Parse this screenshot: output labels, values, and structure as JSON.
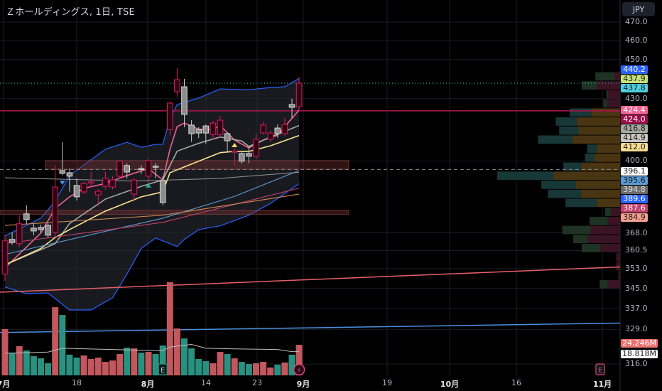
{
  "header": {
    "title": "Ｚホールディングス, 1日, TSE",
    "currency_button": "JPY"
  },
  "colors": {
    "background": "#000000",
    "up_candle": "#d81b60",
    "down_candle": "#9e9e9e",
    "volume_up": "#c2575d",
    "volume_down": "#2a9180",
    "bollinger": "#2962ff",
    "grid": "#1a1d26"
  },
  "chart_data": {
    "type": "candlestick",
    "price_scale": "log",
    "ylim": [
      316,
      470
    ],
    "price_ticks": [
      "470.0",
      "460.0",
      "450.0",
      "430.0",
      "400.0",
      "368.0",
      "360.5",
      "353.0",
      "345.0",
      "337.0",
      "329.0",
      "316.0"
    ],
    "time_ticks": [
      {
        "label": "7月",
        "month": true
      },
      {
        "label": "18",
        "month": false
      },
      {
        "label": "8月",
        "month": true
      },
      {
        "label": "14",
        "month": false
      },
      {
        "label": "23",
        "month": false
      },
      {
        "label": "9月",
        "month": true
      },
      {
        "label": "19",
        "month": false
      },
      {
        "label": "10月",
        "month": true
      },
      {
        "label": "16",
        "month": false
      },
      {
        "label": "11月",
        "month": true
      }
    ],
    "ohlc": [
      [
        350.8,
        367.3,
        348.0,
        364.6
      ],
      [
        365.2,
        368.2,
        363.0,
        364.0
      ],
      [
        363.4,
        375.6,
        362.0,
        371.9
      ],
      [
        376.2,
        380.0,
        371.9,
        373.7
      ],
      [
        370.0,
        372.0,
        367.0,
        368.8
      ],
      [
        370.3,
        371.5,
        368.0,
        369.4
      ],
      [
        371.2,
        372.0,
        366.0,
        367.0
      ],
      [
        368.2,
        398.0,
        366.0,
        388.1
      ],
      [
        395.6,
        408.8,
        393.5,
        394.3
      ],
      [
        394.6,
        396.5,
        386.0,
        393.0
      ],
      [
        388.8,
        392.0,
        382.0,
        383.7
      ],
      [
        385.9,
        390.4,
        385.0,
        389.7
      ],
      [
        389.9,
        395.0,
        388.0,
        390.4
      ],
      [
        384.6,
        387.0,
        379.6,
        386.2
      ],
      [
        388.4,
        395.0,
        387.0,
        392.0
      ],
      [
        388.1,
        393.0,
        387.0,
        391.3
      ],
      [
        393.0,
        400.2,
        392.0,
        399.9
      ],
      [
        397.9,
        398.9,
        392.0,
        394.9
      ],
      [
        384.9,
        392.0,
        381.5,
        391.3
      ],
      [
        396.5,
        398.0,
        394.0,
        396.2
      ],
      [
        393.0,
        401.0,
        390.0,
        400.2
      ],
      [
        397.6,
        399.0,
        392.0,
        397.2
      ],
      [
        391.0,
        393.0,
        380.0,
        381.2
      ],
      [
        414.9,
        428.5,
        412.0,
        427.8
      ],
      [
        433.5,
        445.5,
        431.0,
        439.6
      ],
      [
        436.0,
        440.0,
        416.0,
        422.2
      ],
      [
        417.0,
        419.4,
        409.0,
        412.9
      ],
      [
        414.9,
        416.0,
        410.8,
        413.2
      ],
      [
        416.6,
        417.3,
        408.0,
        413.2
      ],
      [
        412.5,
        419.0,
        410.0,
        418.0
      ],
      [
        412.5,
        421.5,
        411.0,
        419.4
      ],
      [
        412.9,
        413.5,
        404.5,
        409.5
      ],
      [
        404.3,
        406.0,
        398.0,
        404.6
      ],
      [
        403.5,
        404.0,
        398.8,
        399.9
      ],
      [
        403.5,
        407.0,
        399.0,
        402.2
      ],
      [
        402.2,
        413.0,
        401.0,
        410.2
      ],
      [
        413.2,
        418.5,
        412.5,
        417.0
      ],
      [
        410.2,
        414.5,
        409.0,
        413.2
      ],
      [
        415.6,
        417.3,
        411.0,
        412.9
      ],
      [
        412.9,
        420.5,
        412.0,
        417.3
      ],
      [
        427.1,
        430.0,
        420.5,
        425.7
      ],
      [
        426.0,
        441.0,
        424.0,
        437.8
      ]
    ],
    "volume_millions": [
      36.7,
      18.0,
      23.1,
      19.7,
      15.2,
      13.5,
      9.6,
      54.1,
      47.9,
      16.4,
      14.1,
      15.8,
      13.0,
      14.1,
      10.7,
      11.8,
      16.9,
      22.0,
      21.4,
      18.0,
      18.6,
      16.9,
      23.7,
      73.9,
      37.2,
      29.3,
      21.4,
      13.0,
      11.3,
      9.6,
      18.6,
      16.9,
      13.5,
      10.7,
      9.0,
      9.6,
      10.7,
      6.2,
      8.5,
      10.2,
      16.4,
      24.246
    ],
    "volume_colors": [
      "up",
      "down",
      "up",
      "down",
      "down",
      "down",
      "down",
      "up",
      "down",
      "down",
      "down",
      "up",
      "up",
      "up",
      "up",
      "up",
      "up",
      "down",
      "up",
      "down",
      "up",
      "down",
      "down",
      "up",
      "up",
      "down",
      "down",
      "down",
      "down",
      "up",
      "up",
      "down",
      "up",
      "down",
      "down",
      "up",
      "up",
      "up",
      "down",
      "up",
      "down",
      "up"
    ],
    "volume_ma": [
      [
        0,
        17.5
      ],
      [
        6,
        18.5
      ],
      [
        8,
        21.5
      ],
      [
        22,
        19.5
      ],
      [
        23,
        22.5
      ],
      [
        26,
        24.5
      ],
      [
        28,
        21.5
      ],
      [
        32,
        21.0
      ],
      [
        38,
        20.5
      ],
      [
        40,
        18.8
      ],
      [
        41,
        18.818
      ]
    ],
    "lines": [
      {
        "color": "#f06292",
        "points": [
          [
            0,
            353.3
          ],
          [
            5,
            367.9
          ],
          [
            7,
            378.6
          ],
          [
            9,
            383.7
          ],
          [
            11,
            387.5
          ],
          [
            14,
            389.7
          ],
          [
            17,
            393.3
          ],
          [
            20,
            396.5
          ],
          [
            22,
            391.3
          ],
          [
            23,
            405.5
          ],
          [
            24,
            416.3
          ],
          [
            25,
            418
          ],
          [
            27,
            415
          ],
          [
            29,
            415
          ],
          [
            30,
            416.8
          ],
          [
            32,
            409.8
          ],
          [
            34,
            406.1
          ],
          [
            36,
            409.8
          ],
          [
            38,
            412.2
          ],
          [
            41,
            424.4
          ]
        ]
      },
      {
        "color": "#a5aaa0",
        "points": [
          [
            0,
            354.6
          ],
          [
            7,
            363.4
          ],
          [
            9,
            372
          ],
          [
            14,
            382.7
          ],
          [
            19,
            388.4
          ],
          [
            22,
            391.3
          ],
          [
            24,
            404.6
          ],
          [
            27,
            408.3
          ],
          [
            30,
            411.3
          ],
          [
            33,
            409.4
          ],
          [
            34,
            406.8
          ],
          [
            37,
            411.3
          ],
          [
            41,
            416.8
          ]
        ]
      },
      {
        "color": "#f7e38f",
        "points": [
          [
            0,
            354.6
          ],
          [
            5,
            361.4
          ],
          [
            7,
            366
          ],
          [
            9,
            369.4
          ],
          [
            14,
            377.4
          ],
          [
            19,
            383.7
          ],
          [
            22,
            385.9
          ],
          [
            23,
            394.6
          ],
          [
            27,
            399.9
          ],
          [
            30,
            403.9
          ],
          [
            32,
            404.5
          ],
          [
            34,
            404.5
          ],
          [
            37,
            407.1
          ],
          [
            41,
            412.0
          ]
        ]
      },
      {
        "color": "#5b9bd5",
        "points": [
          [
            0,
            358.9
          ],
          [
            22,
            374.3
          ],
          [
            32,
            383.9
          ],
          [
            41,
            395.6
          ]
        ]
      },
      {
        "color": "#8a8a8a",
        "points": [
          [
            0,
            392.3
          ],
          [
            18,
            390.8
          ],
          [
            30,
            392
          ],
          [
            41,
            394.8
          ]
        ]
      },
      {
        "color": "#c2406c",
        "points": [
          [
            0,
            363.4
          ],
          [
            22,
            372.5
          ],
          [
            41,
            387.6
          ]
        ]
      },
      {
        "color": "#d08a50",
        "points": [
          [
            0,
            371.2
          ],
          [
            22,
            375.6
          ],
          [
            41,
            384.9
          ]
        ]
      }
    ],
    "bollinger_upper": [
      [
        0,
        366.7
      ],
      [
        5,
        374.3
      ],
      [
        7,
        381.8
      ],
      [
        9,
        393.3
      ],
      [
        14,
        405.5
      ],
      [
        17,
        408.8
      ],
      [
        19,
        406.4
      ],
      [
        21,
        407.8
      ],
      [
        22,
        407.8
      ],
      [
        23,
        420.1
      ],
      [
        24,
        427.1
      ],
      [
        27,
        430.3
      ],
      [
        30,
        434.9
      ],
      [
        34,
        434.5
      ],
      [
        37,
        435.6
      ],
      [
        39,
        436
      ],
      [
        41,
        440.2
      ]
    ],
    "bollinger_lower": [
      [
        0,
        345.6
      ],
      [
        3,
        342.9
      ],
      [
        6,
        343.2
      ],
      [
        9,
        336.5
      ],
      [
        12,
        336.5
      ],
      [
        15,
        341.3
      ],
      [
        17,
        350.8
      ],
      [
        19,
        361.4
      ],
      [
        21,
        365.8
      ],
      [
        24,
        362.2
      ],
      [
        25,
        365.2
      ],
      [
        27,
        369.4
      ],
      [
        30,
        371
      ],
      [
        34,
        375.6
      ],
      [
        37,
        380.8
      ],
      [
        41,
        389.6
      ]
    ],
    "horizontal_levels": [
      {
        "price": 424.0,
        "color": "#b0124f",
        "style": "solid"
      },
      {
        "price": 437.8,
        "color": "#4dd0e1",
        "style": "dotted"
      },
      {
        "price": 396.1,
        "color": "#8a8a8a",
        "style": "dashed"
      }
    ],
    "zones": [
      {
        "top": 400.2,
        "bottom": 396.2,
        "start_index": 6
      },
      {
        "top": 377.8,
        "bottom": 376.0,
        "start_index": -1
      }
    ],
    "trend_lines": [
      {
        "color": "#e8606a",
        "left_price": 343.5,
        "right_price": 353.7
      },
      {
        "color": "#4a90e2",
        "left_price": 327.8,
        "right_price": 331.4
      }
    ],
    "markers": [
      {
        "type": "triangle-down",
        "index": 8,
        "price": 390.0,
        "color": "#4a90e2"
      },
      {
        "type": "triangle-up",
        "index": 20,
        "price": 388.8,
        "color": "#26a69a"
      },
      {
        "type": "triangle-up",
        "index": 32,
        "price": 407.5,
        "color": "#f7d774"
      }
    ],
    "volume_profile": {
      "price_top": 443.6,
      "price_bottom": 344.9,
      "rows": [
        {
          "up": 81,
          "down": 23,
          "value_area": false
        },
        {
          "up": 64,
          "down": 98,
          "value_area": false
        },
        {
          "up": 7,
          "down": 51,
          "value_area": false
        },
        {
          "up": 16,
          "down": 55,
          "value_area": false
        },
        {
          "up": 92,
          "down": 121,
          "value_area": true
        },
        {
          "up": 88,
          "down": 183,
          "value_area": true
        },
        {
          "up": 82,
          "down": 175,
          "value_area": true
        },
        {
          "up": 145,
          "down": 201,
          "value_area": true
        },
        {
          "up": 40,
          "down": 99,
          "value_area": true
        },
        {
          "up": 39,
          "down": 109,
          "value_area": true
        },
        {
          "up": 75,
          "down": 164,
          "value_area": true
        },
        {
          "up": 237,
          "down": 281,
          "value_area": true
        },
        {
          "up": 145,
          "down": 187,
          "value_area": true
        },
        {
          "up": 140,
          "down": 165,
          "value_area": true
        },
        {
          "up": 131,
          "down": 99,
          "value_area": true
        },
        {
          "up": 25,
          "down": 38,
          "value_area": false
        },
        {
          "up": 77,
          "down": 52,
          "value_area": false
        },
        {
          "up": 120,
          "down": 124,
          "value_area": false
        },
        {
          "up": 62,
          "down": 136,
          "value_area": false
        },
        {
          "up": 78,
          "down": 84,
          "value_area": false
        },
        {
          "up": 0,
          "down": 16,
          "value_area": false
        },
        {
          "up": 0,
          "down": 16,
          "value_area": false
        },
        {
          "up": 0,
          "down": 8,
          "value_area": false
        },
        {
          "up": 33,
          "down": 53,
          "value_area": false
        }
      ]
    },
    "price_badges": [
      {
        "value": "440.2",
        "bg": "#2962ff",
        "fg": "#ffffff"
      },
      {
        "value": "437.9",
        "bg": "#c5e17a",
        "fg": "#1a1a1a"
      },
      {
        "value": "437.8",
        "bg": "#4dd0e1",
        "fg": "#1a1a1a"
      },
      {
        "value": "424.4",
        "bg": "#f06292",
        "fg": "#ffffff"
      },
      {
        "value": "424.0",
        "bg": "#9c0f4a",
        "fg": "#ffffff"
      },
      {
        "value": "416.8",
        "bg": "#a5aaa0",
        "fg": "#1a1a1a"
      },
      {
        "value": "414.9",
        "bg": "#c8c6c0",
        "fg": "#1a1a1a"
      },
      {
        "value": "412.0",
        "bg": "#f7dc8f",
        "fg": "#1a1a1a"
      },
      {
        "value": "396.1",
        "bg": "#ffffff",
        "fg": "#1a1a1a"
      },
      {
        "value": "395.6",
        "bg": "#5b9bd5",
        "fg": "#1a1a1a"
      },
      {
        "value": "394.8",
        "bg": "#6b6b6b",
        "fg": "#e0e0e0"
      },
      {
        "value": "389.6",
        "bg": "#2962ff",
        "fg": "#ffffff"
      },
      {
        "value": "387.6",
        "bg": "#c2406c",
        "fg": "#ffffff"
      },
      {
        "value": "384.9",
        "bg": "#f4a190",
        "fg": "#1a1a1a"
      }
    ],
    "volume_badges": [
      {
        "value": "24.246M",
        "bg": "#f07070",
        "fg": "#ffffff"
      },
      {
        "value": "18.818M",
        "bg": "#ffffff",
        "fg": "#1a1a1a"
      }
    ],
    "events": [
      {
        "type": "earnings",
        "label": "E",
        "index": 22,
        "color": "#2a9180"
      },
      {
        "type": "dividend-flash",
        "label": "⚡",
        "index": 41,
        "color": "#e0457b"
      },
      {
        "type": "earnings",
        "label": "E",
        "future_x_tick": 9,
        "color": "#e0457b"
      }
    ]
  }
}
